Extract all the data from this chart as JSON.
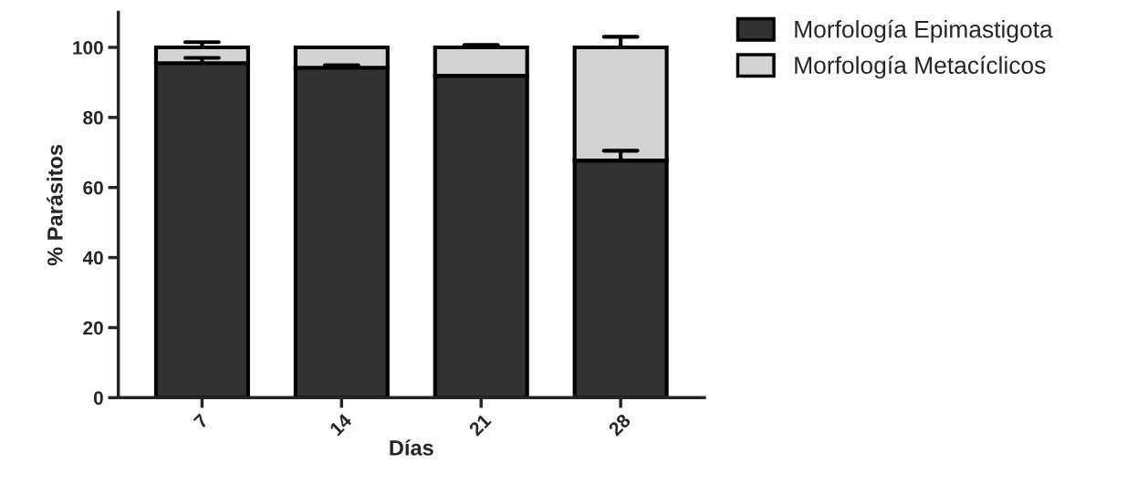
{
  "chart_data": {
    "type": "bar",
    "stacked": true,
    "xlabel": "Días",
    "ylabel": "% Parásitos",
    "categories": [
      "7",
      "14",
      "21",
      "28"
    ],
    "series": [
      {
        "name": "Morfología Epimastigota",
        "color": "#323232",
        "values": [
          95.5,
          94.2,
          91.9,
          67.7
        ],
        "errors": [
          [
            95.5,
            97
          ],
          [
            94.2,
            94.9
          ],
          null,
          [
            67.7,
            70.5
          ]
        ]
      },
      {
        "name": "Morfología Metacíclicos",
        "color": "#d3d3d3",
        "values": [
          4.5,
          5.8,
          8.1,
          32.3
        ],
        "errors": [
          [
            100,
            101.5
          ],
          null,
          [
            100,
            100.7
          ],
          [
            100,
            103
          ]
        ]
      }
    ],
    "ylim": [
      0,
      110
    ],
    "yticks": [
      0,
      20,
      40,
      60,
      80,
      100
    ],
    "grid": false,
    "legend": "top right"
  }
}
